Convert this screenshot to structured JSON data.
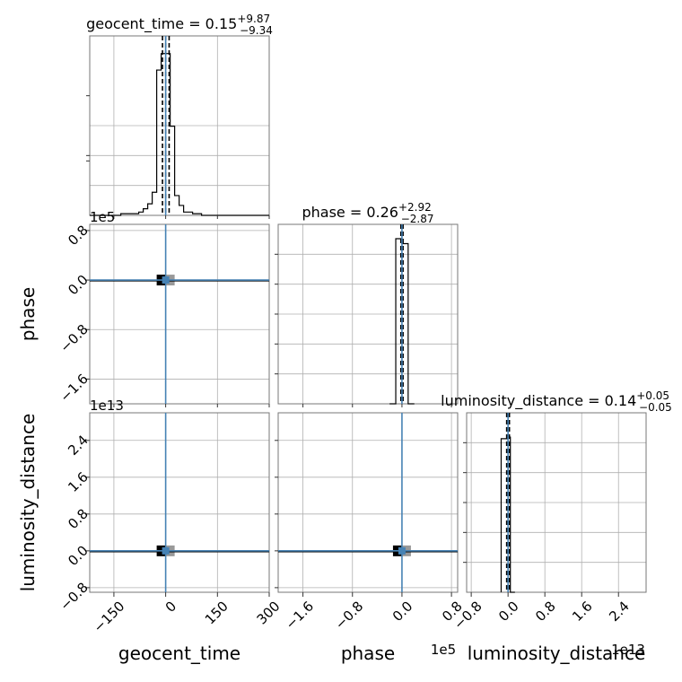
{
  "chart_data": {
    "type": "corner",
    "parameters": [
      "geocent_time",
      "phase",
      "luminosity_distance"
    ],
    "axis_labels": {
      "geocent_time": "geocent_time",
      "phase": "phase",
      "luminosity_distance": "luminosity_distance"
    },
    "ranges": {
      "geocent_time": [
        -220,
        300
      ],
      "phase": [
        -200000,
        90000
      ],
      "luminosity_distance": [
        -9000000000000,
        30000000000000
      ]
    },
    "ticks": {
      "geocent_time": [
        {
          "value": -150,
          "label": "−150"
        },
        {
          "value": 0,
          "label": "0"
        },
        {
          "value": 150,
          "label": "150"
        },
        {
          "value": 300,
          "label": "300"
        }
      ],
      "phase": [
        {
          "value": -160000,
          "label": "−1.6"
        },
        {
          "value": -80000,
          "label": "−0.8"
        },
        {
          "value": 0,
          "label": "0.0"
        },
        {
          "value": 80000,
          "label": "0.8"
        }
      ],
      "luminosity_distance": [
        {
          "value": -8000000000000,
          "label": "−0.8"
        },
        {
          "value": 0,
          "label": "0.0"
        },
        {
          "value": 8000000000000,
          "label": "0.8"
        },
        {
          "value": 16000000000000,
          "label": "1.6"
        },
        {
          "value": 24000000000000,
          "label": "2.4"
        }
      ]
    },
    "offset_labels": {
      "phase": "1e5",
      "luminosity_distance": "1e13"
    },
    "titles": {
      "geocent_time": {
        "main": "geocent_time = 0.15",
        "plus": "+9.87",
        "minus": "−9.34"
      },
      "phase": {
        "main": "phase = 0.26",
        "plus": "+2.92",
        "minus": "−2.87"
      },
      "luminosity_distance": {
        "main": "luminosity_distance = 0.14",
        "plus": "+0.05",
        "minus": "−0.05"
      }
    },
    "truths": {
      "geocent_time": 0,
      "phase": 0,
      "luminosity_distance": 0
    },
    "quantiles": {
      "geocent_time": [
        -9.19,
        0.15,
        10.02
      ],
      "phase": [
        -2.61,
        0.26,
        3.18
      ],
      "luminosity_distance": [
        0.09,
        0.14,
        0.19
      ]
    },
    "histograms": {
      "geocent_time": {
        "edges": [
          -195,
          -182,
          -169,
          -156,
          -143,
          -130,
          -117,
          -104,
          -91,
          -78,
          -65,
          -52,
          -39,
          -26,
          -13,
          0,
          13,
          26,
          39,
          52,
          65,
          78,
          91,
          104,
          117,
          130,
          143,
          156,
          169,
          182,
          195
        ],
        "counts": [
          0,
          0,
          0,
          0,
          0,
          0.01,
          0.01,
          0.01,
          0.01,
          0.02,
          0.04,
          0.07,
          0.14,
          0.88,
          0.98,
          0.98,
          0.54,
          0.12,
          0.06,
          0.02,
          0.02,
          0.01,
          0.01,
          0,
          0,
          0,
          0,
          0,
          0,
          0
        ]
      },
      "phase": {
        "edges": [
          -20000,
          -10000,
          0,
          10000,
          20000
        ],
        "counts": [
          0,
          1.0,
          0.97,
          0
        ]
      },
      "luminosity_distance": {
        "edges": [
          -1500000000000,
          0,
          500000000000,
          1500000000000
        ],
        "counts": [
          0.93,
          0.94,
          0
        ]
      }
    },
    "scatter_blobs": [
      {
        "x": "geocent_time",
        "y": "phase",
        "cx": 0,
        "cy": 0
      },
      {
        "x": "geocent_time",
        "y": "luminosity_distance",
        "cx": 0,
        "cy": 0
      },
      {
        "x": "phase",
        "y": "luminosity_distance",
        "cx": 0,
        "cy": 0
      }
    ],
    "grid": true,
    "colors": {
      "histogram": "#000000",
      "truth": "#4682b4",
      "density_dark": "#000000",
      "density_light": "#999999",
      "frame": "#777777"
    }
  }
}
